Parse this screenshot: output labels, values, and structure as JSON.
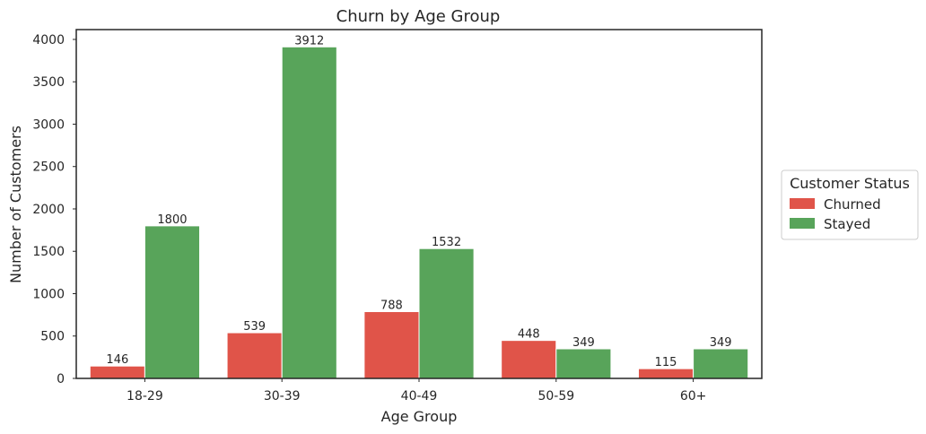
{
  "chart_data": {
    "type": "bar",
    "title": "Churn by Age Group",
    "xlabel": "Age Group",
    "ylabel": "Number of Customers",
    "categories": [
      "18-29",
      "30-39",
      "40-49",
      "50-59",
      "60+"
    ],
    "series": [
      {
        "name": "Churned",
        "color": "#e05449",
        "values": [
          146,
          539,
          788,
          448,
          115
        ]
      },
      {
        "name": "Stayed",
        "color": "#58a45a",
        "values": [
          1800,
          3912,
          1532,
          349,
          349
        ]
      }
    ],
    "ylim": [
      0,
      4116
    ],
    "yticks": [
      0,
      500,
      1000,
      1500,
      2000,
      2500,
      3000,
      3500,
      4000
    ],
    "grid": false,
    "legend": {
      "title": "Customer Status",
      "placement": "outside-right"
    }
  }
}
